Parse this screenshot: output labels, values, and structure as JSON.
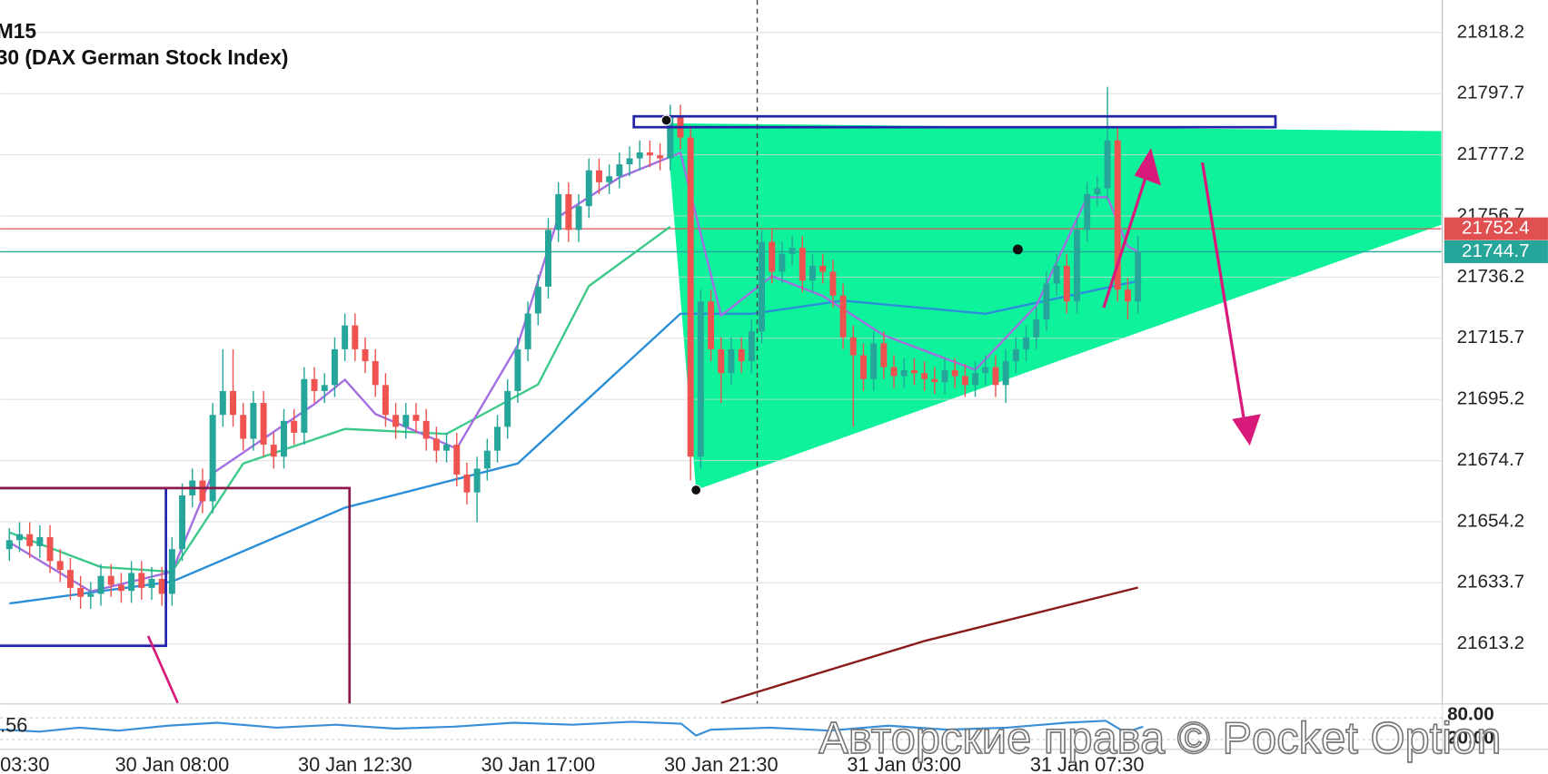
{
  "chart_data": {
    "type": "candlestick",
    "title": "M15",
    "subtitle": "30 (DAX German Stock Index)",
    "watermark": "Авторские права © Pocket Option",
    "categories": [
      "03:30",
      null,
      null,
      null,
      null,
      null,
      null,
      null,
      null,
      null,
      null,
      null,
      null,
      null,
      null,
      null,
      "30 Jan 08:00",
      null,
      null,
      null,
      null,
      null,
      null,
      null,
      null,
      null,
      null,
      null,
      null,
      null,
      null,
      null,
      null,
      null,
      "30 Jan 12:30",
      null,
      null,
      null,
      null,
      null,
      null,
      null,
      null,
      null,
      null,
      null,
      null,
      null,
      null,
      null,
      null,
      null,
      "30 Jan 17:00",
      null,
      null,
      null,
      null,
      null,
      null,
      null,
      null,
      null,
      null,
      null,
      null,
      null,
      null,
      null,
      null,
      null,
      "30 Jan 21:30",
      null,
      null,
      null,
      null,
      null,
      null,
      null,
      null,
      null,
      null,
      null,
      null,
      null,
      null,
      null,
      null,
      null,
      "31 Jan 03:00",
      null,
      null,
      null,
      null,
      null,
      null,
      null,
      null,
      null,
      null,
      null,
      null,
      null,
      null,
      null,
      null,
      null,
      "31 Jan 07:30",
      null,
      null,
      null,
      null,
      null
    ],
    "open": [
      21645,
      21648,
      21650,
      21646,
      21649,
      21641,
      21638,
      21632,
      21629,
      21630,
      21636,
      21633,
      21631,
      21637,
      21632,
      21635,
      21630,
      21645,
      21663,
      21668,
      21661,
      21690,
      21698,
      21690,
      21682,
      21694,
      21680,
      21676,
      21688,
      21684,
      21702,
      21698,
      21700,
      21712,
      21720,
      21712,
      21708,
      21700,
      21690,
      21686,
      21690,
      21688,
      21682,
      21678,
      21680,
      21670,
      21664,
      21672,
      21678,
      21686,
      21698,
      21712,
      21724,
      21733,
      21752,
      21764,
      21752,
      21760,
      21772,
      21768,
      21770,
      21774,
      21776,
      21778,
      21777,
      21776,
      21790,
      21783,
      21676,
      21728,
      21712,
      21704,
      21712,
      21708,
      21718,
      21748,
      21738,
      21744,
      21746,
      21735,
      21740,
      21738,
      21730,
      21716,
      21710,
      21702,
      21714,
      21706,
      21703,
      21705,
      21704,
      21702,
      21701,
      21705,
      21703,
      21700,
      21704,
      21706,
      21700,
      21708,
      21712,
      21716,
      21722,
      21734,
      21740,
      21728,
      21752,
      21764,
      21766,
      21782,
      21732,
      21728
    ],
    "close": [
      21648,
      21650,
      21646,
      21649,
      21641,
      21638,
      21632,
      21629,
      21630,
      21636,
      21633,
      21631,
      21637,
      21632,
      21635,
      21630,
      21645,
      21663,
      21668,
      21661,
      21690,
      21698,
      21690,
      21682,
      21694,
      21680,
      21676,
      21688,
      21684,
      21702,
      21698,
      21700,
      21712,
      21720,
      21712,
      21708,
      21700,
      21690,
      21686,
      21690,
      21688,
      21682,
      21678,
      21680,
      21670,
      21664,
      21672,
      21678,
      21686,
      21698,
      21712,
      21724,
      21733,
      21752,
      21764,
      21752,
      21760,
      21772,
      21768,
      21770,
      21774,
      21776,
      21778,
      21777,
      21776,
      21790,
      21783,
      21676,
      21728,
      21712,
      21704,
      21712,
      21708,
      21718,
      21748,
      21738,
      21744,
      21746,
      21735,
      21740,
      21738,
      21730,
      21716,
      21710,
      21702,
      21714,
      21706,
      21703,
      21705,
      21704,
      21702,
      21701,
      21705,
      21703,
      21700,
      21704,
      21706,
      21700,
      21708,
      21712,
      21716,
      21722,
      21734,
      21740,
      21728,
      21752,
      21764,
      21766,
      21782,
      21732,
      21728,
      21744.7
    ],
    "high": [
      21652,
      21654,
      21654,
      21653,
      21653,
      21645,
      21642,
      21636,
      21634,
      21640,
      21640,
      21637,
      21641,
      21641,
      21639,
      21639,
      21649,
      21667,
      21672,
      21672,
      21694,
      21712,
      21712,
      21694,
      21698,
      21698,
      21684,
      21692,
      21692,
      21706,
      21706,
      21704,
      21716,
      21724,
      21724,
      21716,
      21712,
      21704,
      21694,
      21694,
      21694,
      21692,
      21686,
      21684,
      21684,
      21674,
      21676,
      21682,
      21690,
      21702,
      21716,
      21728,
      21737,
      21756,
      21768,
      21768,
      21764,
      21776,
      21776,
      21774,
      21778,
      21780,
      21782,
      21782,
      21781,
      21794,
      21794,
      21787,
      21732,
      21732,
      21716,
      21716,
      21716,
      21722,
      21752,
      21752,
      21748,
      21750,
      21750,
      21744,
      21744,
      21742,
      21734,
      21720,
      21714,
      21718,
      21718,
      21710,
      21709,
      21709,
      21708,
      21706,
      21709,
      21709,
      21707,
      21708,
      21710,
      21710,
      21712,
      21716,
      21720,
      21726,
      21738,
      21744,
      21744,
      21756,
      21768,
      21770,
      21800,
      21786,
      21736,
      21750
    ],
    "low": [
      21641,
      21644,
      21642,
      21642,
      21637,
      21634,
      21628,
      21625,
      21625,
      21626,
      21629,
      21627,
      21627,
      21628,
      21628,
      21626,
      21626,
      21641,
      21659,
      21657,
      21657,
      21686,
      21686,
      21678,
      21678,
      21676,
      21672,
      21672,
      21680,
      21680,
      21694,
      21694,
      21696,
      21708,
      21708,
      21704,
      21696,
      21686,
      21682,
      21682,
      21684,
      21678,
      21674,
      21674,
      21666,
      21660,
      21654,
      21668,
      21674,
      21682,
      21694,
      21708,
      21720,
      21729,
      21748,
      21748,
      21748,
      21756,
      21764,
      21764,
      21766,
      21770,
      21772,
      21773,
      21772,
      21772,
      21779,
      21668,
      21672,
      21708,
      21694,
      21700,
      21704,
      21704,
      21714,
      21734,
      21734,
      21740,
      21731,
      21731,
      21734,
      21726,
      21712,
      21686,
      21698,
      21698,
      21702,
      21699,
      21699,
      21700,
      21698,
      21697,
      21697,
      21699,
      21696,
      21696,
      21700,
      21696,
      21694,
      21704,
      21708,
      21712,
      21718,
      21730,
      21724,
      21724,
      21748,
      21760,
      21762,
      21728,
      21722,
      21724
    ],
    "up_color": "#26a69a",
    "down_color": "#ef5350",
    "ylim": [
      21593.4,
      21829.1
    ],
    "yticks": [
      21818.2,
      21797.7,
      21777.2,
      21756.7,
      21736.2,
      21715.7,
      21695.2,
      21674.7,
      21654.2,
      21633.7,
      21613.2
    ],
    "grid": true,
    "indicators": [
      {
        "color": "#3cc98a",
        "x": [
          0,
          9,
          16,
          23,
          33,
          43,
          52,
          57,
          65
        ],
        "values": [
          21650.6,
          21639.0,
          21637.4,
          21673.7,
          21685.3,
          21683.6,
          21700.2,
          21733.2,
          21753.1
        ]
      },
      {
        "color": "#2a8fd8",
        "x": [
          0,
          16,
          33,
          50,
          66,
          73,
          82,
          96,
          111
        ],
        "values": [
          21626.8,
          21634.1,
          21658.9,
          21673.7,
          21723.9,
          21723.9,
          21728.3,
          21723.9,
          21734.9
        ]
      },
      {
        "color": "#a36ee0",
        "x": [
          0,
          8,
          16,
          20,
          30,
          33,
          36,
          44,
          50,
          54,
          60,
          66,
          70,
          75,
          80,
          86,
          95,
          101,
          106,
          108,
          110,
          111
        ],
        "values": [
          21647.3,
          21630.8,
          21637.4,
          21670.4,
          21693.6,
          21701.8,
          21690.3,
          21678.7,
          21713.4,
          21756.4,
          21769.6,
          21777.9,
          21723.3,
          21736.5,
          21729.9,
          21716.7,
          21705.1,
          21726.6,
          21763.0,
          21763.0,
          21746.5,
          21744.8
        ]
      },
      {
        "color": "#8b1a1a",
        "x": [
          70,
          90,
          111
        ],
        "values": [
          21593.4,
          21614.2,
          21632.1
        ]
      }
    ],
    "price_lines": [
      {
        "value": 21752.4,
        "color": "#e05050"
      },
      {
        "value": 21744.7,
        "color": "#26a69a"
      }
    ],
    "oscillator": {
      "last_value": ".56",
      "labels": [
        "80.00",
        "20.00"
      ]
    }
  }
}
